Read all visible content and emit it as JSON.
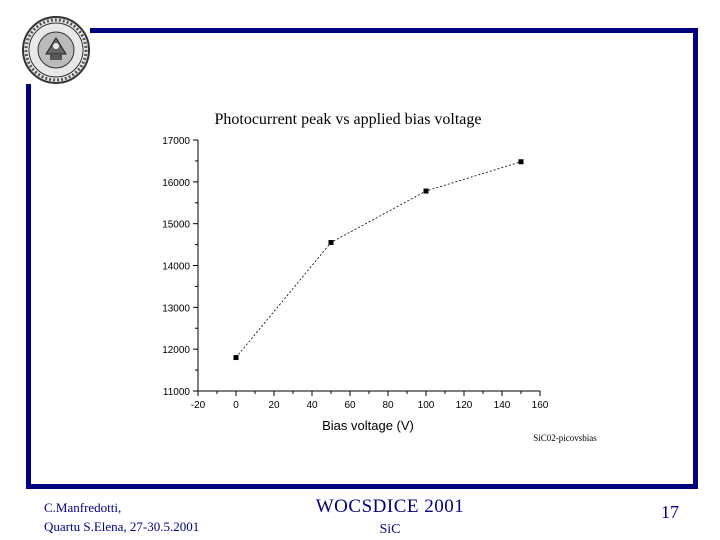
{
  "header": {
    "seal_icon": "university-seal-icon"
  },
  "chart_data": {
    "type": "line",
    "title": "Photocurrent peak vs applied bias voltage",
    "xlabel": "Bias voltage (V)",
    "ylabel": "",
    "xlim": [
      -20,
      160
    ],
    "ylim": [
      11000,
      17000
    ],
    "x_ticks": [
      -20,
      0,
      20,
      40,
      60,
      80,
      100,
      120,
      140,
      160
    ],
    "y_ticks": [
      11000,
      12000,
      13000,
      14000,
      15000,
      16000,
      17000
    ],
    "series": [
      {
        "x": [
          0,
          50,
          100,
          150
        ],
        "y": [
          11800,
          14550,
          15780,
          16480
        ]
      }
    ],
    "source_label": "SiC02-picovsbias",
    "grid": false,
    "legend": "none"
  },
  "footer": {
    "author": "C.Manfredotti,",
    "location_date": "Quartu S.Elena, 27-30.5.2001",
    "conference": "WOCSDICE 2001",
    "subject": "SiC",
    "page_number": "17"
  },
  "colors": {
    "frame": "#000080",
    "footer_text": "#000080",
    "plot": "#000000"
  }
}
